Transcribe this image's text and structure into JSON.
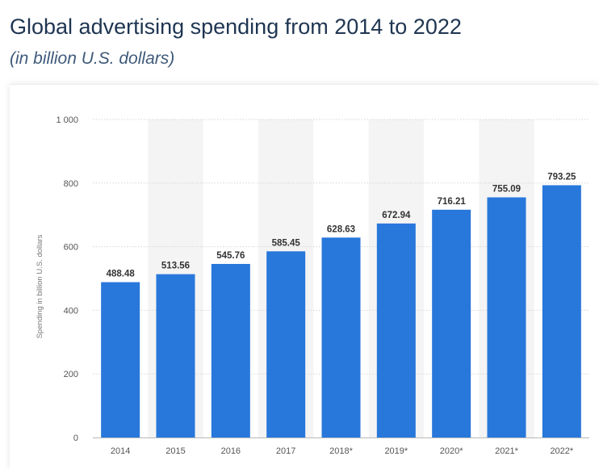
{
  "header": {
    "title": "Global advertising spending from 2014 to 2022",
    "subtitle": "(in billion U.S. dollars)"
  },
  "colors": {
    "bar": "#2877db",
    "band": "#f4f4f4",
    "grid": "#d6d6d6"
  },
  "chart_data": {
    "type": "bar",
    "title": "Global advertising spending from 2014 to 2022",
    "subtitle": "(in billion U.S. dollars)",
    "xlabel": "",
    "ylabel": "Spending in billion U.S. dollars",
    "categories": [
      "2014",
      "2015",
      "2016",
      "2017",
      "2018*",
      "2019*",
      "2020*",
      "2021*",
      "2022*"
    ],
    "values": [
      488.48,
      513.56,
      545.76,
      585.45,
      628.63,
      672.94,
      716.21,
      755.09,
      793.25
    ],
    "value_labels": [
      "488.48",
      "513.56",
      "545.76",
      "585.45",
      "628.63",
      "672.94",
      "716.21",
      "755.09",
      "793.25"
    ],
    "ylim": [
      0,
      1000
    ],
    "yticks": [
      0,
      200,
      400,
      600,
      800,
      1000
    ],
    "ytick_labels": [
      "0",
      "200",
      "400",
      "600",
      "800",
      "1 000"
    ],
    "grid": true,
    "legend": "none"
  }
}
